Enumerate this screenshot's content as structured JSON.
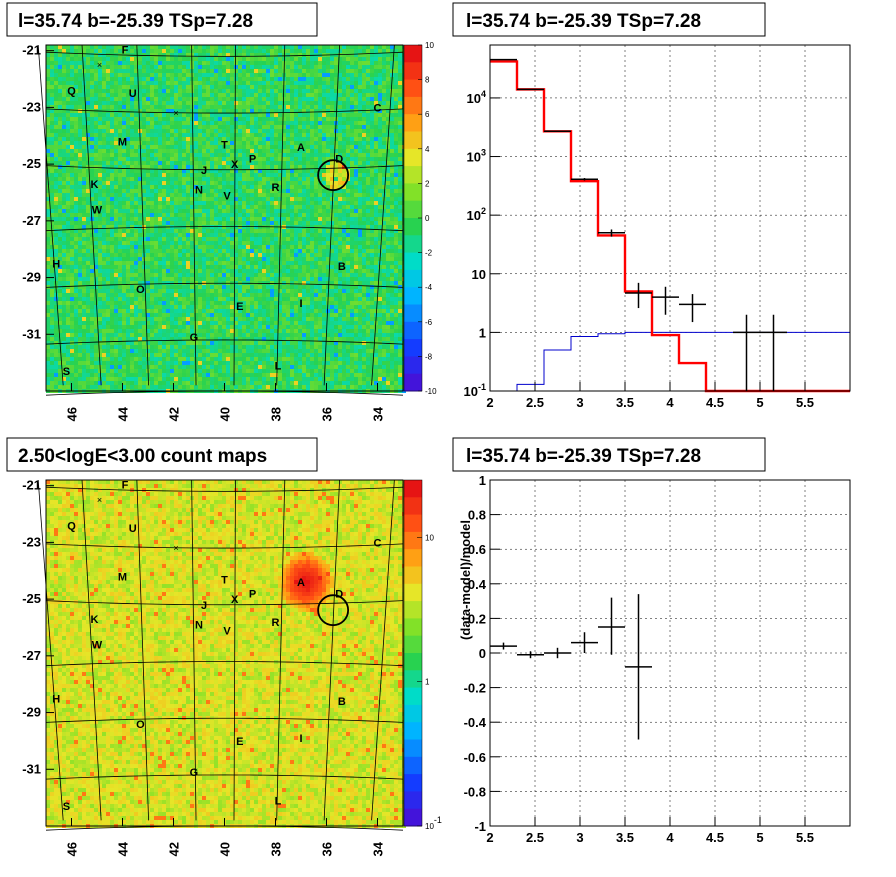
{
  "panels": {
    "tl": {
      "title": "l=35.74 b=-25.39 TSp=7.28"
    },
    "tr": {
      "title": "l=35.74 b=-25.39 TSp=7.28"
    },
    "bl": {
      "title": "2.50<logE<3.00 count maps"
    },
    "br": {
      "title": "l=35.74 b=-25.39 TSp=7.28"
    }
  },
  "colors": {
    "model_line": "#ff0000",
    "background_line": "#0000cc",
    "data_points": "#000000",
    "map_base": "#3ad24a",
    "grid": "#000000"
  },
  "chart_data": [
    {
      "type": "heatmap",
      "title": "l=35.74 b=-25.39 TSp=7.28",
      "xlim": [
        47,
        33
      ],
      "ylim": [
        -33,
        -20.8
      ],
      "x_ticks": [
        "46",
        "44",
        "42",
        "40",
        "38",
        "36",
        "34"
      ],
      "y_ticks": [
        "-21",
        "-23",
        "-25",
        "-27",
        "-29",
        "-31"
      ],
      "colorbar": {
        "scale": "linear",
        "range": [
          -10,
          10
        ],
        "ticks": [
          "10",
          "8",
          "6",
          "4",
          "2",
          "0",
          "-2",
          "-4",
          "-6",
          "-8",
          "-10"
        ]
      },
      "source_circle": {
        "l": 35.74,
        "b": -25.39
      },
      "source_labels": [
        {
          "t": "F",
          "l": 43.9,
          "b": -20.95
        },
        {
          "t": "Q",
          "l": 46.0,
          "b": -22.4
        },
        {
          "t": "U",
          "l": 43.6,
          "b": -22.5
        },
        {
          "t": "C",
          "l": 34.0,
          "b": -23.0
        },
        {
          "t": "M",
          "l": 44.0,
          "b": -24.2
        },
        {
          "t": "T",
          "l": 40.0,
          "b": -24.3
        },
        {
          "t": "A",
          "l": 37.0,
          "b": -24.4
        },
        {
          "t": "D",
          "l": 35.5,
          "b": -24.8
        },
        {
          "t": "P",
          "l": 38.9,
          "b": -24.8
        },
        {
          "t": "X",
          "l": 39.6,
          "b": -25.0
        },
        {
          "t": "J",
          "l": 40.8,
          "b": -25.2
        },
        {
          "t": "K",
          "l": 45.1,
          "b": -25.7
        },
        {
          "t": "N",
          "l": 41.0,
          "b": -25.9
        },
        {
          "t": "R",
          "l": 38.0,
          "b": -25.8
        },
        {
          "t": "V",
          "l": 39.9,
          "b": -26.1
        },
        {
          "t": "W",
          "l": 45.0,
          "b": -26.6
        },
        {
          "t": "H",
          "l": 46.6,
          "b": -28.5
        },
        {
          "t": "B",
          "l": 35.4,
          "b": -28.6
        },
        {
          "t": "O",
          "l": 43.3,
          "b": -29.4
        },
        {
          "t": "E",
          "l": 39.4,
          "b": -30.0
        },
        {
          "t": "I",
          "l": 37.0,
          "b": -29.9
        },
        {
          "t": "G",
          "l": 41.2,
          "b": -31.1
        },
        {
          "t": "L",
          "l": 37.9,
          "b": -32.1
        },
        {
          "t": "S",
          "l": 46.2,
          "b": -32.3
        }
      ],
      "x_markers": [
        {
          "l": 44.9,
          "b": -21.5
        },
        {
          "l": 41.9,
          "b": -23.2
        }
      ]
    },
    {
      "type": "line",
      "title": "l=35.74 b=-25.39 TSp=7.28",
      "xlim": [
        2,
        6
      ],
      "ylim": [
        0.1,
        80000
      ],
      "yscale": "log",
      "x_ticks": [
        "2",
        "2.5",
        "3",
        "3.5",
        "4",
        "4.5",
        "5",
        "5.5"
      ],
      "y_ticks": [
        "10^-1",
        "1",
        "10",
        "10^2",
        "10^3",
        "10^4"
      ],
      "bin_edges": [
        2.0,
        2.3,
        2.6,
        2.9,
        3.2,
        3.5,
        3.8,
        4.1,
        4.4,
        4.7,
        5.0,
        5.3,
        5.6,
        6.0
      ],
      "series": [
        {
          "values": [
            42000,
            14000,
            2700,
            380,
            45,
            5.0,
            0.9,
            0.3,
            0.1,
            0.1,
            0.1,
            0.1,
            0.1
          ]
        },
        {
          "values": [
            0.1,
            0.13,
            0.5,
            0.85,
            0.95,
            1.0,
            1.0,
            1.0,
            1.0,
            1.0,
            1.0,
            1.0,
            1.0
          ]
        }
      ],
      "points": [
        {
          "x": 2.15,
          "y": 45000,
          "xerr": 0.15,
          "ylo": 44500,
          "yhi": 45500
        },
        {
          "x": 2.45,
          "y": 14000,
          "xerr": 0.15,
          "ylo": 13900,
          "yhi": 14100
        },
        {
          "x": 2.75,
          "y": 2700,
          "xerr": 0.15,
          "ylo": 2650,
          "yhi": 2750
        },
        {
          "x": 3.05,
          "y": 410,
          "xerr": 0.15,
          "ylo": 390,
          "yhi": 430
        },
        {
          "x": 3.35,
          "y": 50,
          "xerr": 0.15,
          "ylo": 43,
          "yhi": 57
        },
        {
          "x": 3.65,
          "y": 4.7,
          "xerr": 0.15,
          "ylo": 2.6,
          "yhi": 7.0
        },
        {
          "x": 3.95,
          "y": 4.0,
          "xerr": 0.15,
          "ylo": 2.0,
          "yhi": 6.0
        },
        {
          "x": 4.25,
          "y": 3.0,
          "xerr": 0.15,
          "ylo": 1.5,
          "yhi": 4.5
        },
        {
          "x": 4.85,
          "y": 1.0,
          "xerr": 0.15,
          "ylo": 0.1,
          "yhi": 2.0
        },
        {
          "x": 5.15,
          "y": 1.0,
          "xerr": 0.15,
          "ylo": 0.1,
          "yhi": 2.0
        }
      ]
    },
    {
      "type": "heatmap",
      "title": "2.50<logE<3.00 count maps",
      "xlim": [
        47,
        33
      ],
      "ylim": [
        -33,
        -20.8
      ],
      "x_ticks": [
        "46",
        "44",
        "42",
        "40",
        "38",
        "36",
        "34"
      ],
      "y_ticks": [
        "-21",
        "-23",
        "-25",
        "-27",
        "-29",
        "-31"
      ],
      "colorbar": {
        "scale": "log",
        "range": [
          0.1,
          25
        ],
        "ticks": [
          "10",
          "1",
          "10^-1"
        ]
      },
      "hotspot": {
        "l": 36.8,
        "b": -24.4
      },
      "source_circle": {
        "l": 35.74,
        "b": -25.39
      },
      "source_labels": "same as map 1"
    },
    {
      "type": "scatter",
      "title": "l=35.74 b=-25.39 TSp=7.28",
      "ylabel": "(data-model)/model",
      "xlim": [
        2,
        6
      ],
      "ylim": [
        -1,
        1
      ],
      "x_ticks": [
        "2",
        "2.5",
        "3",
        "3.5",
        "4",
        "4.5",
        "5",
        "5.5"
      ],
      "y_ticks": [
        "1",
        "0.8",
        "0.6",
        "0.4",
        "0.2",
        "0",
        "-0.2",
        "-0.4",
        "-0.6",
        "-0.8",
        "-1"
      ],
      "points": [
        {
          "x": 2.15,
          "y": 0.04,
          "xerr": 0.15,
          "ylo": 0.02,
          "yhi": 0.06
        },
        {
          "x": 2.45,
          "y": -0.01,
          "xerr": 0.15,
          "ylo": -0.03,
          "yhi": 0.01
        },
        {
          "x": 2.75,
          "y": 0.0,
          "xerr": 0.15,
          "ylo": -0.03,
          "yhi": 0.03
        },
        {
          "x": 3.05,
          "y": 0.06,
          "xerr": 0.15,
          "ylo": 0.0,
          "yhi": 0.12
        },
        {
          "x": 3.35,
          "y": 0.15,
          "xerr": 0.15,
          "ylo": -0.01,
          "yhi": 0.32
        },
        {
          "x": 3.65,
          "y": -0.08,
          "xerr": 0.15,
          "ylo": -0.5,
          "yhi": 0.34
        }
      ]
    }
  ]
}
